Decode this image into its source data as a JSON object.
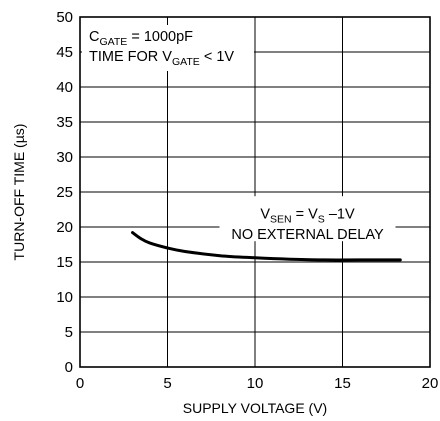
{
  "chart_data": {
    "type": "line",
    "title": "",
    "xlabel": "SUPPLY VOLTAGE (V)",
    "ylabel": "TURN-OFF TIME (µs)",
    "xlim": [
      0,
      20
    ],
    "ylim": [
      0,
      50
    ],
    "x_ticks": [
      "0",
      "5",
      "10",
      "15",
      "20"
    ],
    "y_ticks": [
      "0",
      "5",
      "10",
      "15",
      "20",
      "25",
      "30",
      "35",
      "40",
      "45",
      "50"
    ],
    "grid": true,
    "conditions": {
      "line1": {
        "main": "C",
        "sub": "GATE",
        "rest": " = 1000pF"
      },
      "line2": {
        "main": "TIME FOR V",
        "sub": "GATE",
        "rest": " < 1V"
      }
    },
    "curve_label": {
      "line1": {
        "a": "V",
        "a_sub": "SEN",
        "b": " = V",
        "b_sub": "S",
        "c": " –1V"
      },
      "line2": "NO EXTERNAL DELAY"
    },
    "series": [
      {
        "x": [
          3.0,
          3.5,
          4.0,
          5.0,
          6.0,
          8.0,
          10.0,
          12.0,
          14.0,
          16.0,
          18.3
        ],
        "values": [
          19.2,
          18.3,
          17.7,
          17.0,
          16.5,
          15.9,
          15.6,
          15.4,
          15.3,
          15.3,
          15.3
        ]
      }
    ]
  }
}
